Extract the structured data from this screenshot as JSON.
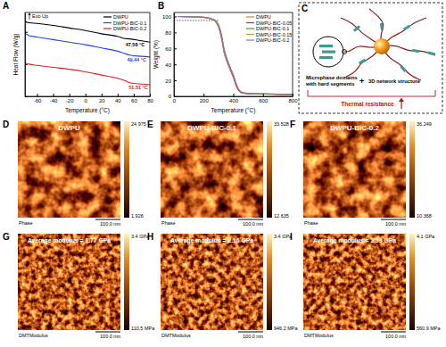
{
  "panel_labels": [
    "A",
    "B",
    "C",
    "D",
    "E",
    "F",
    "G",
    "H",
    "I"
  ],
  "chart_data": [
    {
      "type": "line",
      "x_label": "Temperature (°C)",
      "y_label": "Heat Flow (W/g)",
      "exo_label": "Exo Up",
      "xlim": [
        -75,
        80
      ],
      "xticks": [
        -60,
        -40,
        -20,
        0,
        20,
        40,
        60,
        80
      ],
      "ylim": [
        -1.0,
        0.3
      ],
      "yticks": [
        -1,
        -0.5,
        0
      ],
      "tick_labels": "x",
      "legend": "upper right",
      "annotations": [
        {
          "text": "47.58 °C",
          "x": 47.58,
          "y": -0.1,
          "color": "#000000"
        },
        {
          "text": "49.44 °C",
          "x": 49.44,
          "y": -0.34,
          "color": "#1f3fff"
        },
        {
          "text": "51.51 °C",
          "x": 51.51,
          "y": -0.77,
          "color": "#e02020"
        }
      ],
      "series": [
        {
          "name": "DWPU",
          "color": "#000000",
          "x": [
            -75,
            -70,
            -60,
            -40,
            -20,
            0,
            20,
            40,
            47.58,
            55,
            70,
            80
          ],
          "values": [
            0.16,
            0.14,
            0.13,
            0.1,
            0.06,
            0.02,
            -0.03,
            -0.07,
            -0.1,
            -0.11,
            -0.14,
            -0.16
          ]
        },
        {
          "name": "DWPU-BIC-0.1",
          "color": "#1f3fff",
          "x": [
            -75,
            -70,
            -60,
            -40,
            -20,
            0,
            20,
            40,
            49.44,
            55,
            70,
            80
          ],
          "values": [
            -0.02,
            -0.06,
            -0.08,
            -0.12,
            -0.16,
            -0.2,
            -0.25,
            -0.3,
            -0.34,
            -0.36,
            -0.38,
            -0.39
          ]
        },
        {
          "name": "DWPU-BIC-0.2",
          "color": "#e02020",
          "x": [
            -75,
            -70,
            -60,
            -40,
            -20,
            0,
            20,
            40,
            51.51,
            55,
            70,
            80
          ],
          "values": [
            -0.48,
            -0.5,
            -0.52,
            -0.55,
            -0.58,
            -0.62,
            -0.67,
            -0.72,
            -0.77,
            -0.79,
            -0.81,
            -0.82
          ]
        }
      ]
    },
    {
      "type": "line",
      "x_label": "Temperature (°C)",
      "y_label": "Weight (%)",
      "xlim": [
        0,
        800
      ],
      "xticks": [
        0,
        200,
        400,
        600,
        800
      ],
      "ylim": [
        0,
        105
      ],
      "yticks": [
        0,
        20,
        40,
        60,
        80,
        100
      ],
      "legend": "upper right",
      "threshold": {
        "y": 95,
        "x": [
          0,
          300
        ]
      },
      "series": [
        {
          "name": "DWPU",
          "color": "#e8772e",
          "x": [
            25,
            100,
            200,
            250,
            280,
            300,
            320,
            340,
            360,
            380,
            400,
            420,
            440,
            460,
            500,
            600,
            700,
            800
          ],
          "values": [
            100,
            99.8,
            99.2,
            97.5,
            95,
            90,
            78,
            58,
            45,
            35,
            25,
            14,
            7,
            4.5,
            3.5,
            3,
            2.5,
            2.2
          ]
        },
        {
          "name": "DWPU-BIC-0.05",
          "color": "#e41a1c",
          "x": [
            25,
            100,
            200,
            250,
            280,
            300,
            320,
            340,
            360,
            380,
            400,
            420,
            440,
            460,
            500,
            600,
            700,
            800
          ],
          "values": [
            100,
            99.8,
            99,
            97,
            94,
            88,
            74,
            54,
            42,
            33,
            24,
            13,
            6.5,
            4.2,
            3.2,
            2.8,
            2.4,
            2.1
          ]
        },
        {
          "name": "DWPU-BIC-0.1",
          "color": "#3aa63a",
          "x": [
            25,
            100,
            200,
            250,
            280,
            300,
            320,
            340,
            360,
            380,
            400,
            420,
            440,
            460,
            500,
            600,
            700,
            800
          ],
          "values": [
            100,
            99.8,
            99.1,
            97.2,
            94.5,
            89,
            76,
            57,
            46,
            36,
            27,
            16,
            8,
            5,
            3.8,
            3.2,
            2.8,
            2.5
          ]
        },
        {
          "name": "DWPU-BIC-0.15",
          "color": "#b5a642",
          "x": [
            25,
            100,
            200,
            250,
            280,
            300,
            320,
            340,
            360,
            380,
            400,
            420,
            440,
            460,
            500,
            600,
            700,
            800
          ],
          "values": [
            100,
            99.7,
            98.8,
            96.8,
            93.5,
            87,
            73,
            53,
            43,
            34,
            26,
            15,
            7.5,
            4.8,
            3.6,
            3.1,
            2.7,
            2.4
          ]
        },
        {
          "name": "DWPU-BIC-0.2",
          "color": "#9467bd",
          "x": [
            25,
            100,
            200,
            250,
            280,
            300,
            320,
            340,
            360,
            380,
            400,
            420,
            440,
            460,
            500,
            600,
            700,
            800
          ],
          "values": [
            100,
            99.7,
            98.9,
            97,
            94,
            88,
            75,
            56,
            45,
            35,
            26,
            15,
            7,
            4.6,
            3.5,
            3,
            2.6,
            2.3
          ]
        }
      ]
    }
  ],
  "diagram": {
    "microphase_label": [
      "Microphase domains",
      "with hard segments"
    ],
    "plus": "+",
    "network_label": "3D network structure",
    "result_label": "Thermal resistance"
  },
  "afm_images": [
    {
      "title": "DWPU",
      "channel": "Phase",
      "scale_bar": "100.0 nm",
      "colorbar_max": "24.975",
      "colorbar_min": "1.926"
    },
    {
      "title": "DWPU-BIC-0.1",
      "channel": "Phase",
      "scale_bar": "100.0 nm",
      "colorbar_max": "33.528",
      "colorbar_min": "12.635"
    },
    {
      "title": "DWPU-BIC-0.2",
      "channel": "Phase",
      "scale_bar": "100.0 nm",
      "colorbar_max": "36.249",
      "colorbar_min": "10.368"
    },
    {
      "title": "Average modulus = 1.77 GPa",
      "channel": "DMTModulus",
      "scale_bar": "100.0 nm",
      "colorbar_max": "3.4 GPa",
      "colorbar_min": "110.5 MPa"
    },
    {
      "title": "Average modulus = 2.16 GPa",
      "channel": "DMTModulus",
      "scale_bar": "100.0 nm",
      "colorbar_max": "3.4 GPa",
      "colorbar_min": "946.2 MPa"
    },
    {
      "title": "Average modulus = 2.53 GPa",
      "channel": "DMTModulus",
      "scale_bar": "100.0 nm",
      "colorbar_max": "4.1 GPa",
      "colorbar_min": "560.9 MPa"
    }
  ]
}
